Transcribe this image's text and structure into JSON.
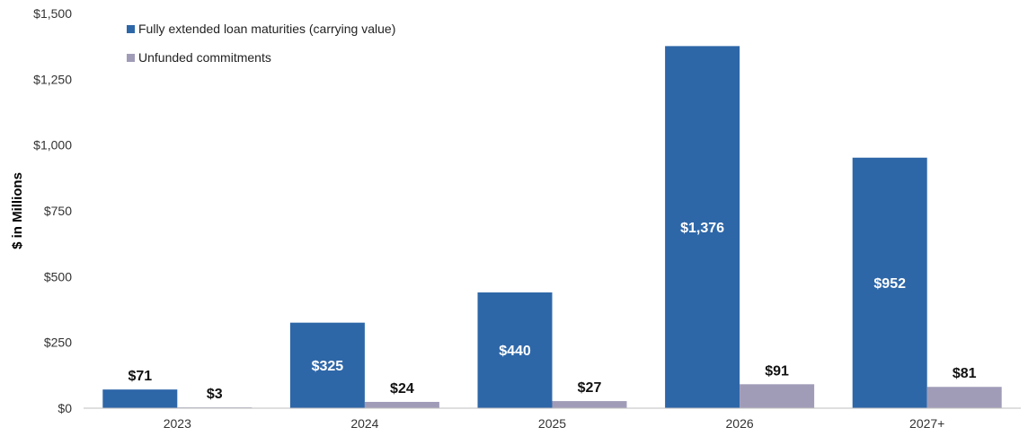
{
  "chart_data": {
    "type": "bar",
    "title": "",
    "xlabel": "",
    "ylabel": "$ in Millions",
    "ylim": [
      0,
      1500
    ],
    "yticks": [
      0,
      250,
      500,
      750,
      1000,
      1250,
      1500
    ],
    "ytick_labels": [
      "$0",
      "$250",
      "$500",
      "$750",
      "$1,000",
      "$1,250",
      "$1,500"
    ],
    "categories": [
      "2023",
      "2024",
      "2025",
      "2026",
      "2027+"
    ],
    "grid": false,
    "legend_position": "top-left",
    "series": [
      {
        "name": "Fully extended loan maturities (carrying value)",
        "color": "#2e67a8",
        "values": [
          71,
          325,
          440,
          1376,
          952
        ],
        "labels": [
          "$71",
          "$325",
          "$440",
          "$1,376",
          "$952"
        ]
      },
      {
        "name": "Unfunded commitments",
        "color": "#a09cb8",
        "values": [
          3,
          24,
          27,
          91,
          81
        ],
        "labels": [
          "$3",
          "$24",
          "$27",
          "$91",
          "$81"
        ]
      }
    ]
  }
}
